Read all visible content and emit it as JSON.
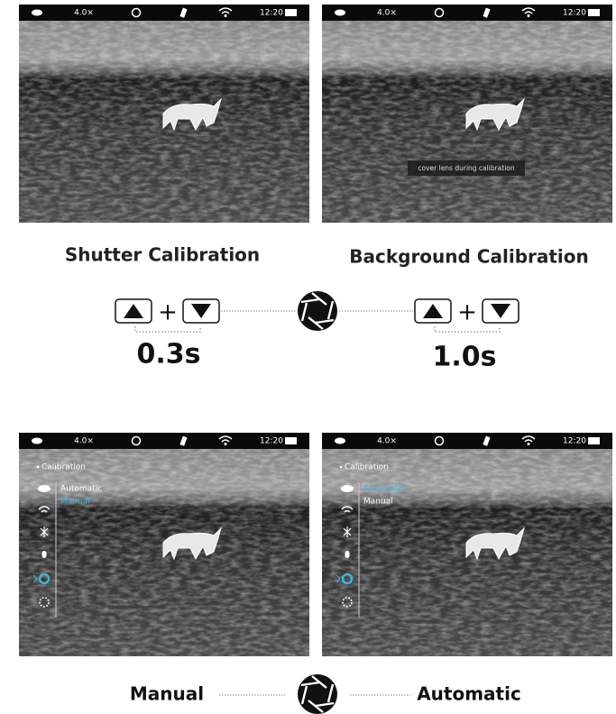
{
  "panels": [
    {
      "zoom": "4.0×",
      "time": "12:20"
    },
    {
      "zoom": "4.0×",
      "time": "12:20",
      "message": "cover lens during calibration"
    },
    {
      "zoom": "4.0×",
      "time": "12:20",
      "menu": {
        "title": "Calibration",
        "options": [
          "Automatic",
          "Manual"
        ],
        "selected": 1
      }
    },
    {
      "zoom": "4.0×",
      "time": "12:20",
      "menu": {
        "title": "Calibration",
        "options": [
          "Automatic",
          "Manual"
        ],
        "selected": 0
      }
    }
  ],
  "captions": {
    "shutter": "Shutter Calibration",
    "background": "Background Calibration"
  },
  "combos": [
    {
      "plus": "+",
      "duration": "0.3s"
    },
    {
      "plus": "+",
      "duration": "1.0s"
    }
  ],
  "modes": {
    "left": "Manual",
    "right": "Automatic"
  }
}
